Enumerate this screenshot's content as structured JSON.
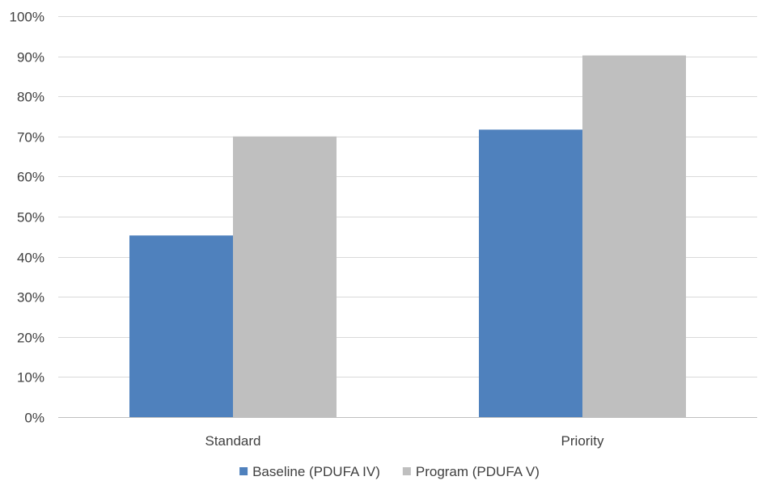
{
  "chart_data": {
    "type": "bar",
    "categories": [
      "Standard",
      "Priority"
    ],
    "series": [
      {
        "name": "Baseline (PDUFA IV)",
        "values": [
          45.3,
          71.7
        ],
        "color": "#4f81bd"
      },
      {
        "name": "Program (PDUFA V)",
        "values": [
          70,
          90.2
        ],
        "color": "#bfbfbf"
      }
    ],
    "y_tick_labels": [
      "0%",
      "10%",
      "20%",
      "30%",
      "40%",
      "50%",
      "60%",
      "70%",
      "80%",
      "90%",
      "100%"
    ],
    "ylim": [
      0,
      100
    ],
    "y_unit": "%",
    "grid": true,
    "gridline_color": "#d9d9d9",
    "legend_position": "bottom-center",
    "title": "",
    "xlabel": "",
    "ylabel": ""
  }
}
